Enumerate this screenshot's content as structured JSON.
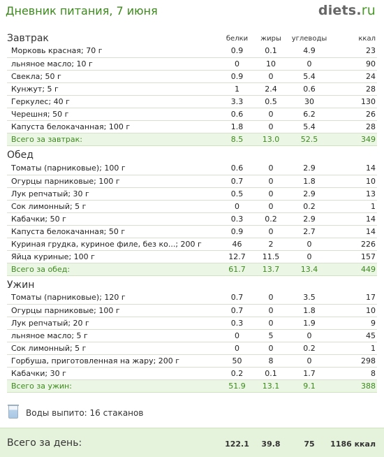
{
  "header": {
    "title": "Дневник питания, 7 июня",
    "logo_main": "diets",
    "logo_dot": ".",
    "logo_tld": "ru"
  },
  "columns": {
    "protein": "белки",
    "fat": "жиры",
    "carbs": "углеводы",
    "kcal": "ккал"
  },
  "meals": [
    {
      "title": "Завтрак",
      "items": [
        {
          "name": "Морковь красная; 70 г",
          "protein": "0.9",
          "fat": "0.1",
          "carbs": "4.9",
          "kcal": "23"
        },
        {
          "name": "льняное масло; 10 г",
          "protein": "0",
          "fat": "10",
          "carbs": "0",
          "kcal": "90"
        },
        {
          "name": "Свекла; 50 г",
          "protein": "0.9",
          "fat": "0",
          "carbs": "5.4",
          "kcal": "24"
        },
        {
          "name": "Кунжут; 5 г",
          "protein": "1",
          "fat": "2.4",
          "carbs": "0.6",
          "kcal": "28"
        },
        {
          "name": "Геркулес; 40 г",
          "protein": "3.3",
          "fat": "0.5",
          "carbs": "30",
          "kcal": "130"
        },
        {
          "name": "Черешня; 50 г",
          "protein": "0.6",
          "fat": "0",
          "carbs": "6.2",
          "kcal": "26"
        },
        {
          "name": "Капуста белокачанная; 100 г",
          "protein": "1.8",
          "fat": "0",
          "carbs": "5.4",
          "kcal": "28"
        }
      ],
      "total": {
        "label": "Всего за завтрак:",
        "protein": "8.5",
        "fat": "13.0",
        "carbs": "52.5",
        "kcal": "349"
      }
    },
    {
      "title": "Обед",
      "items": [
        {
          "name": "Томаты (парниковые); 100 г",
          "protein": "0.6",
          "fat": "0",
          "carbs": "2.9",
          "kcal": "14"
        },
        {
          "name": "Огурцы парниковые; 100 г",
          "protein": "0.7",
          "fat": "0",
          "carbs": "1.8",
          "kcal": "10"
        },
        {
          "name": "Лук репчатый; 30 г",
          "protein": "0.5",
          "fat": "0",
          "carbs": "2.9",
          "kcal": "13"
        },
        {
          "name": "Сок лимонный; 5 г",
          "protein": "0",
          "fat": "0",
          "carbs": "0.2",
          "kcal": "1"
        },
        {
          "name": "Кабачки; 50 г",
          "protein": "0.3",
          "fat": "0.2",
          "carbs": "2.9",
          "kcal": "14"
        },
        {
          "name": "Капуста белокачанная; 50 г",
          "protein": "0.9",
          "fat": "0",
          "carbs": "2.7",
          "kcal": "14"
        },
        {
          "name": "Куриная грудка, куриное филе, без ко...; 200 г",
          "protein": "46",
          "fat": "2",
          "carbs": "0",
          "kcal": "226"
        },
        {
          "name": "Яйца куриные; 100 г",
          "protein": "12.7",
          "fat": "11.5",
          "carbs": "0",
          "kcal": "157"
        }
      ],
      "total": {
        "label": "Всего за обед:",
        "protein": "61.7",
        "fat": "13.7",
        "carbs": "13.4",
        "kcal": "449"
      }
    },
    {
      "title": "Ужин",
      "items": [
        {
          "name": "Томаты (парниковые); 120 г",
          "protein": "0.7",
          "fat": "0",
          "carbs": "3.5",
          "kcal": "17"
        },
        {
          "name": "Огурцы парниковые; 100 г",
          "protein": "0.7",
          "fat": "0",
          "carbs": "1.8",
          "kcal": "10"
        },
        {
          "name": "Лук репчатый; 20 г",
          "protein": "0.3",
          "fat": "0",
          "carbs": "1.9",
          "kcal": "9"
        },
        {
          "name": "льняное масло; 5 г",
          "protein": "0",
          "fat": "5",
          "carbs": "0",
          "kcal": "45"
        },
        {
          "name": "Сок лимонный; 5 г",
          "protein": "0",
          "fat": "0",
          "carbs": "0.2",
          "kcal": "1"
        },
        {
          "name": "Горбуша, приготовленная на жару; 200 г",
          "protein": "50",
          "fat": "8",
          "carbs": "0",
          "kcal": "298"
        },
        {
          "name": "Кабачки; 30 г",
          "protein": "0.2",
          "fat": "0.1",
          "carbs": "1.7",
          "kcal": "8"
        }
      ],
      "total": {
        "label": "Всего за ужин:",
        "protein": "51.9",
        "fat": "13.1",
        "carbs": "9.1",
        "kcal": "388"
      }
    }
  ],
  "water": {
    "text": "Воды выпито: 16 стаканов",
    "icon": "water-glass-icon"
  },
  "day_total": {
    "label": "Всего за день:",
    "protein": "122.1",
    "fat": "39.8",
    "carbs": "75",
    "kcal": "1186 ккал"
  },
  "colors": {
    "accent_green": "#3b8a1d",
    "total_bg": "#ecf6e4",
    "day_bg": "#e6f3dc"
  }
}
